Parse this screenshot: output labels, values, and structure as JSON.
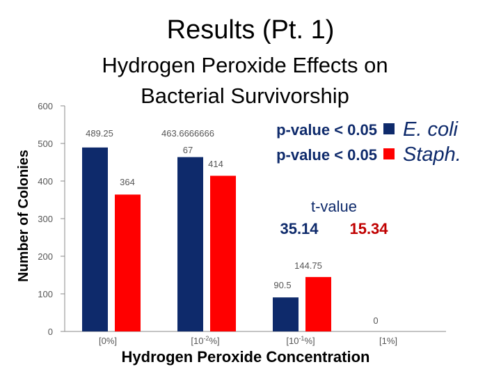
{
  "slide_title": "Results (Pt. 1)",
  "chart_data": {
    "type": "bar",
    "title_lines": [
      "Hydrogen Peroxide Effects on",
      "Bacterial Survivorship"
    ],
    "xlabel": "Hydrogen Peroxide Concentration",
    "ylabel": "Number of Colonies",
    "ylim": [
      0,
      600
    ],
    "yticks": [
      0,
      100,
      200,
      300,
      400,
      500,
      600
    ],
    "grid": false,
    "categories": [
      {
        "pre": "[",
        "base": "0%",
        "sup": "",
        "post": "]"
      },
      {
        "pre": "[",
        "base": "10",
        "sup": "-2",
        "post": "%]"
      },
      {
        "pre": "[",
        "base": "10",
        "sup": "-1",
        "post": "%]"
      },
      {
        "pre": "[",
        "base": "1%",
        "sup": "",
        "post": "]"
      }
    ],
    "series": [
      {
        "name": "E. coli",
        "color": "#0e2a6b",
        "values": [
          489.25,
          463.6666666667,
          90.5,
          0
        ],
        "labels": [
          "489.25",
          "463.6666666\n67",
          "90.5",
          ""
        ]
      },
      {
        "name": "Staph.",
        "color": "#ff0000",
        "values": [
          364,
          414,
          144.75,
          0
        ],
        "labels": [
          "364",
          "414",
          "144.75",
          "0"
        ]
      }
    ],
    "legend": [
      {
        "pvalue": "p-value < 0.05",
        "name": "E. coli",
        "color": "#0e2a6b"
      },
      {
        "pvalue": "p-value < 0.05",
        "name": "Staph.",
        "color": "#ff0000"
      }
    ],
    "tvalue": {
      "label": "t-value",
      "values": [
        {
          "text": "35.14",
          "color": "#0e2a6b"
        },
        {
          "text": "15.34",
          "color": "#c00000"
        }
      ]
    }
  }
}
